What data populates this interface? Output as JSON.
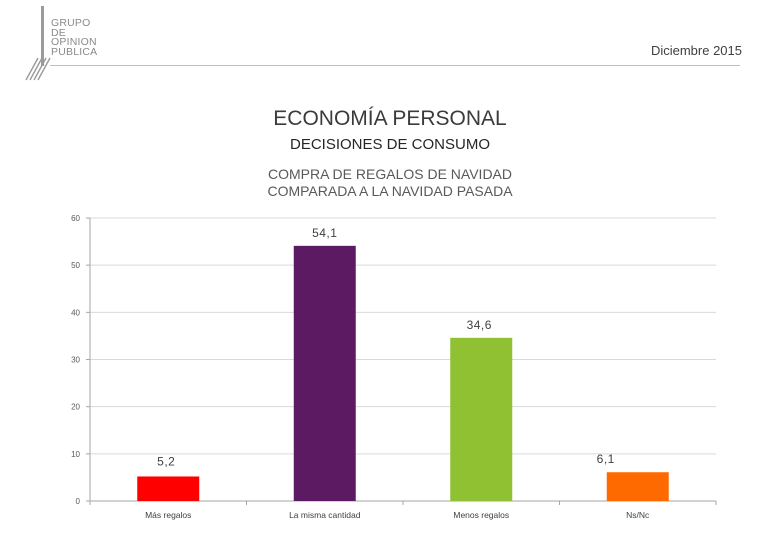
{
  "header": {
    "logo_lines": [
      "GRUPO",
      "DE",
      "OPINION",
      "PUBLICA"
    ],
    "date": "Diciembre 2015"
  },
  "titles": {
    "main": "ECONOMÍA PERSONAL",
    "sub": "DECISIONES DE CONSUMO",
    "chart_title_line1": "COMPRA DE REGALOS DE NAVIDAD",
    "chart_title_line2": "COMPARADA A LA NAVIDAD PASADA"
  },
  "chart_data": {
    "type": "bar",
    "categories": [
      "Más regalos",
      "La misma cantidad",
      "Menos regalos",
      "Ns/Nc"
    ],
    "values": [
      5.2,
      54.1,
      34.6,
      6.1
    ],
    "value_labels": [
      "5,2",
      "54,1",
      "34,6",
      "6,1"
    ],
    "colors": [
      "#ff0000",
      "#5c1a63",
      "#8fc132",
      "#ff6a00"
    ],
    "ylim": [
      0,
      60
    ],
    "yticks": [
      0,
      10,
      20,
      30,
      40,
      50,
      60
    ],
    "grid": true,
    "legend": "none"
  }
}
